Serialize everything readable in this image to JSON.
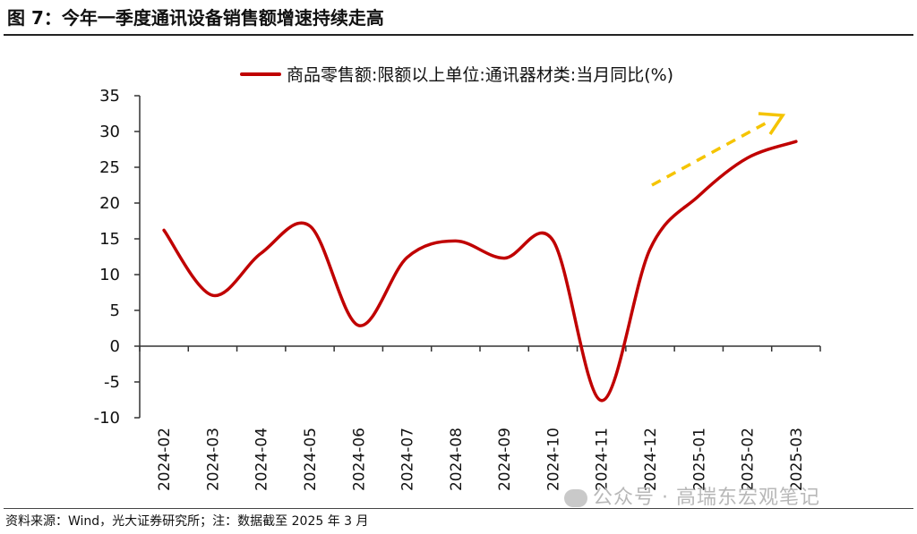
{
  "figure": {
    "title": "图 7：今年一季度通讯设备销售额增速持续走高",
    "source": "资料来源：Wind，光大证券研究所；注：数据截至 2025 年 3 月",
    "watermark": "公众号 · 高瑞东宏观笔记"
  },
  "chart_data": {
    "type": "line",
    "title": "",
    "xlabel": "",
    "ylabel": "",
    "ylim": [
      -10,
      35
    ],
    "yticks": [
      35,
      30,
      25,
      20,
      15,
      10,
      5,
      0,
      -5,
      -10
    ],
    "categories": [
      "2024-02",
      "2024-03",
      "2024-04",
      "2024-05",
      "2024-06",
      "2024-07",
      "2024-08",
      "2024-09",
      "2024-10",
      "2024-11",
      "2024-12",
      "2025-01",
      "2025-02",
      "2025-03"
    ],
    "series": [
      {
        "name": "商品零售额:限额以上单位:通讯器材类:当月同比(%)",
        "values": [
          16.2,
          7.1,
          13.0,
          16.8,
          2.9,
          12.4,
          14.7,
          12.3,
          14.8,
          -7.6,
          13.6,
          21.0,
          26.3,
          28.6
        ],
        "color": "#c00000"
      }
    ],
    "legend": "top-center",
    "annotation": "trend-arrow",
    "annotation_color": "#f5c400"
  }
}
